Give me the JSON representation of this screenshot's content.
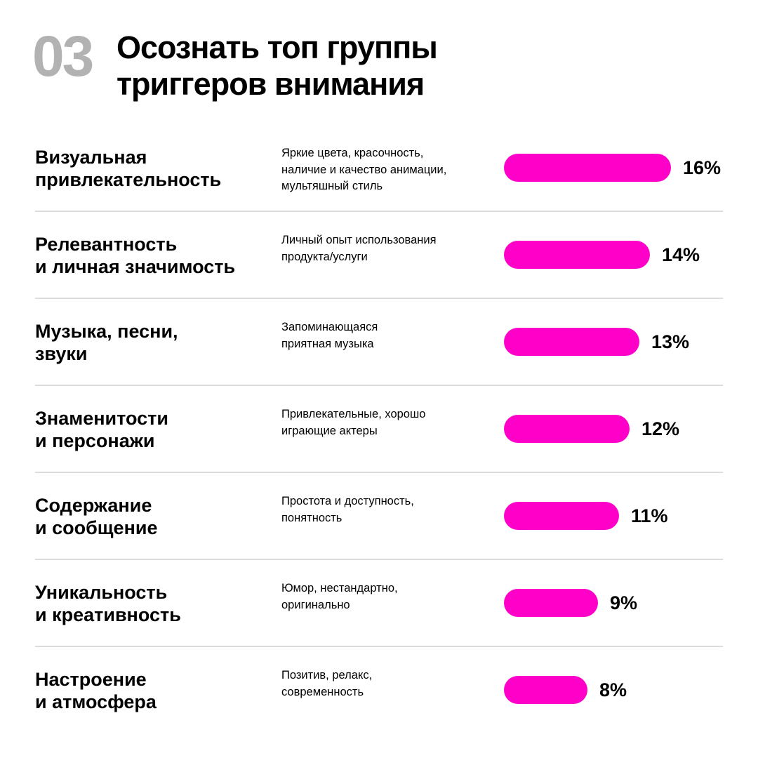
{
  "header": {
    "number": "03",
    "title": "Осознать топ группы\nтриггеров внимания"
  },
  "colors": {
    "accent": "#ff00c8",
    "number": "#b2b2b2",
    "divider": "#dcdcdc",
    "text": "#000000"
  },
  "chart_data": {
    "type": "bar",
    "orientation": "horizontal",
    "title": "Осознать топ группы триггеров внимания",
    "grid": false,
    "legend": false,
    "value_unit": "%",
    "xlim": [
      0,
      16
    ],
    "categories": [
      "Визуальная\nпривлекательность",
      "Релевантность\nи личная значимость",
      "Музыка, песни,\nзвуки",
      "Знаменитости\nи персонажи",
      "Содержание\nи сообщение",
      "Уникальность\nи креативность",
      "Настроение\nи атмосфера"
    ],
    "descriptions": [
      "Яркие цвета, красочность,\nналичие и качество анимации,\nмультяшный стиль",
      "Личный опыт использования\nпродукта/услуги",
      "Запоминающаяся\nприятная музыка",
      "Привлекательные, хорошо\nиграющие актеры",
      "Простота и доступность,\nпонятность",
      "Юмор, нестандартно,\nоригинально",
      "Позитив, релакс,\nсовременность"
    ],
    "values": [
      16,
      14,
      13,
      12,
      11,
      9,
      8
    ],
    "value_labels": [
      "16%",
      "14%",
      "13%",
      "12%",
      "11%",
      "9%",
      "8%"
    ]
  }
}
